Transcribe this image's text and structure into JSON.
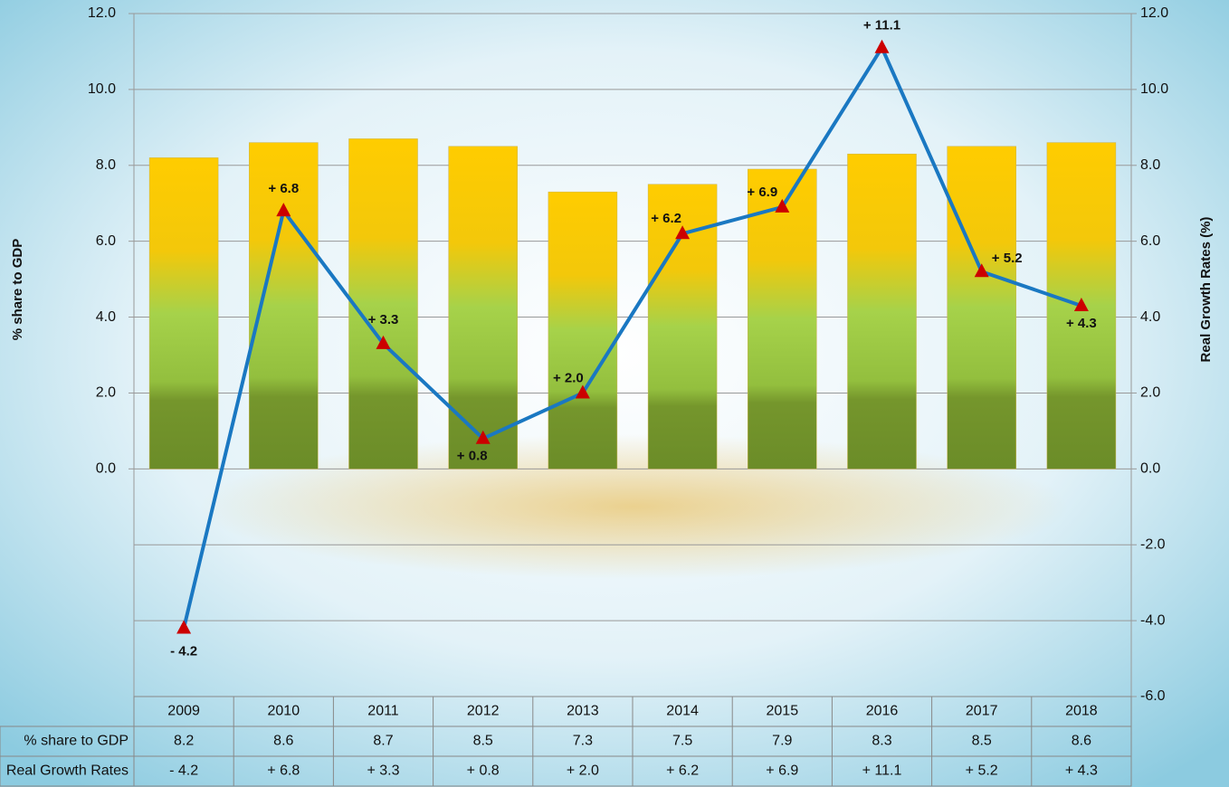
{
  "chart_data": {
    "type": "bar-line",
    "y_label": "% share to GDP",
    "y2_label": "Real  Growth Rates (%)",
    "categories": [
      "2009",
      "2010",
      "2011",
      "2012",
      "2013",
      "2014",
      "2015",
      "2016",
      "2017",
      "2018"
    ],
    "series": [
      {
        "name": "% share to GDP",
        "type": "bar",
        "color": "#f5c400",
        "values": [
          8.2,
          8.6,
          8.7,
          8.5,
          7.3,
          7.5,
          7.9,
          8.3,
          8.5,
          8.6
        ]
      },
      {
        "name": "Real Growth Rates",
        "type": "line",
        "axis": "y2",
        "color": "#1a78c2",
        "marker_color": "#cc0000",
        "values": [
          -4.2,
          6.8,
          3.3,
          0.8,
          2.0,
          6.2,
          6.9,
          11.1,
          5.2,
          4.3
        ],
        "value_labels": [
          "- 4.2",
          "+ 6.8",
          "+ 3.3",
          "+ 0.8",
          "+ 2.0",
          "+ 6.2",
          "+ 6.9",
          "+ 11.1",
          "+ 5.2",
          "+ 4.3"
        ]
      }
    ],
    "ylim": [
      -6,
      12
    ],
    "yticks": [
      {
        "value": 0,
        "label": "0.0"
      },
      {
        "value": 2,
        "label": "2.0"
      },
      {
        "value": 4,
        "label": "4.0"
      },
      {
        "value": 6,
        "label": "6.0"
      },
      {
        "value": 8,
        "label": "8.0"
      },
      {
        "value": 10,
        "label": "10.0"
      },
      {
        "value": 12,
        "label": "12.0"
      }
    ],
    "y2lim": [
      -6,
      12
    ],
    "y2ticks": [
      {
        "value": -6,
        "label": "-6.0"
      },
      {
        "value": -4,
        "label": "-4.0"
      },
      {
        "value": -2,
        "label": "-2.0"
      },
      {
        "value": 0,
        "label": "0.0"
      },
      {
        "value": 2,
        "label": "2.0"
      },
      {
        "value": 4,
        "label": "4.0"
      },
      {
        "value": 6,
        "label": "6.0"
      },
      {
        "value": 8,
        "label": "8.0"
      },
      {
        "value": 10,
        "label": "10.0"
      },
      {
        "value": 12,
        "label": "12.0"
      }
    ],
    "grid": true,
    "data_table": true
  }
}
